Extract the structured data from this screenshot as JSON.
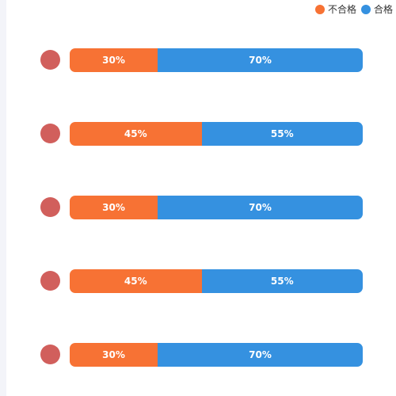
{
  "chart_data": {
    "type": "bar",
    "orientation": "horizontal",
    "stacked": true,
    "percent_stacked": true,
    "categories": [
      "",
      "",
      "",
      "",
      ""
    ],
    "series": [
      {
        "name": "不合格",
        "color": "#f77234",
        "values": [
          30,
          45,
          30,
          45,
          30
        ]
      },
      {
        "name": "合格",
        "color": "#3591e0",
        "values": [
          70,
          55,
          70,
          55,
          70
        ]
      }
    ],
    "value_suffix": "%",
    "legend": "top-right",
    "grid": false
  },
  "row_marker_color": "#d15f5c"
}
